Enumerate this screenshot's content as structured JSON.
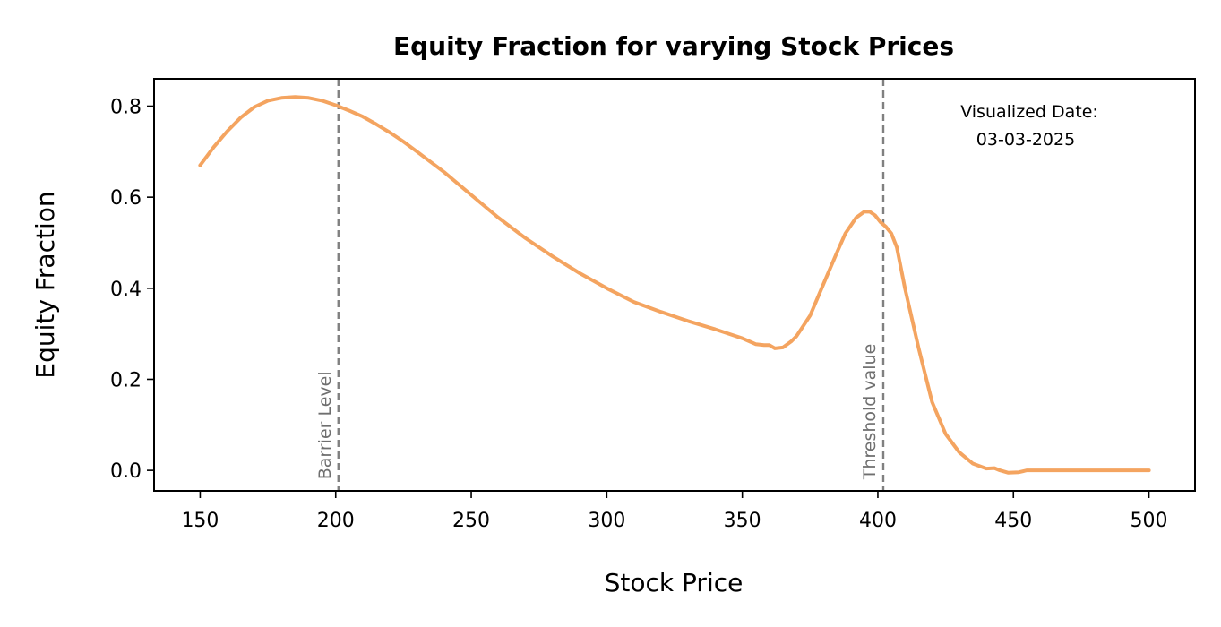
{
  "chart_data": {
    "type": "line",
    "title": "Equity Fraction for varying Stock Prices",
    "xlabel": "Stock Price",
    "ylabel": "Equity Fraction",
    "xlim": [
      133,
      517
    ],
    "ylim": [
      -0.045,
      0.86
    ],
    "xticks": [
      150,
      200,
      250,
      300,
      350,
      400,
      450,
      500
    ],
    "xtick_labels": [
      "150",
      "200",
      "250",
      "300",
      "350",
      "400",
      "450",
      "500"
    ],
    "yticks": [
      0.0,
      0.2,
      0.4,
      0.6,
      0.8
    ],
    "ytick_labels": [
      "0.0",
      "0.2",
      "0.4",
      "0.6",
      "0.8"
    ],
    "grid": false,
    "series": [
      {
        "color": "#f4a460",
        "x": [
          150,
          155,
          160,
          165,
          170,
          175,
          180,
          185,
          190,
          195,
          200,
          205,
          210,
          215,
          220,
          225,
          230,
          240,
          250,
          260,
          270,
          280,
          290,
          300,
          310,
          320,
          330,
          340,
          345,
          350,
          355,
          358,
          360,
          362,
          365,
          368,
          370,
          375,
          380,
          385,
          388,
          392,
          395,
          397,
          399,
          401,
          403,
          405,
          407,
          410,
          415,
          420,
          425,
          430,
          435,
          440,
          443,
          445,
          448,
          452,
          455,
          460,
          470,
          480,
          490,
          500
        ],
        "y": [
          0.67,
          0.71,
          0.745,
          0.775,
          0.798,
          0.812,
          0.818,
          0.82,
          0.818,
          0.812,
          0.802,
          0.79,
          0.777,
          0.76,
          0.742,
          0.722,
          0.7,
          0.655,
          0.605,
          0.555,
          0.51,
          0.47,
          0.433,
          0.4,
          0.37,
          0.348,
          0.328,
          0.31,
          0.3,
          0.29,
          0.277,
          0.275,
          0.275,
          0.268,
          0.27,
          0.283,
          0.295,
          0.34,
          0.41,
          0.48,
          0.52,
          0.555,
          0.568,
          0.568,
          0.56,
          0.545,
          0.535,
          0.52,
          0.49,
          0.4,
          0.27,
          0.15,
          0.08,
          0.04,
          0.015,
          0.004,
          0.005,
          0.0,
          -0.005,
          -0.004,
          0.0,
          0.0,
          0.0,
          0.0,
          0.0,
          0.0
        ]
      }
    ],
    "vlines": [
      {
        "x": 201,
        "label": "Barrier Level",
        "color": "#808080",
        "style": "dashed"
      },
      {
        "x": 402,
        "label": "Threshold value",
        "color": "#808080",
        "style": "dashed"
      }
    ],
    "annotation": {
      "line1": "Visualized Date:",
      "line2": "03-03-2025"
    }
  }
}
